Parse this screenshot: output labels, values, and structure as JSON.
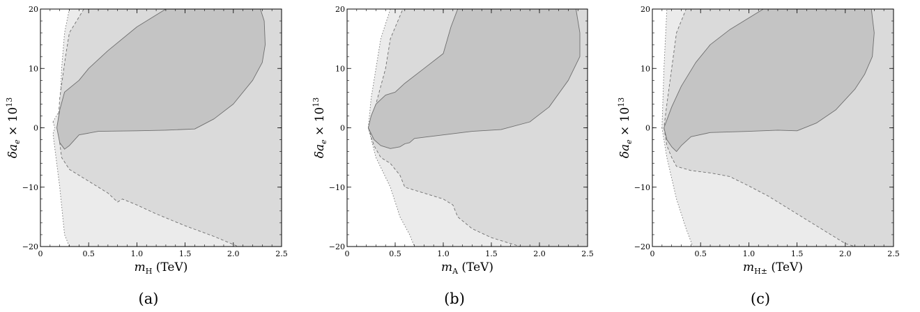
{
  "chart_data": [
    {
      "type": "area",
      "caption": "(a)",
      "xlabel": {
        "var": "m",
        "sub": "H",
        "unit": " (TeV)"
      },
      "ylabel": {
        "var": "δa",
        "sub": "e",
        "factor": " × 10",
        "exp": "13"
      },
      "xlim": [
        0,
        2.5
      ],
      "ylim": [
        -20,
        20
      ],
      "xticks": [
        0,
        0.5,
        1.0,
        1.5,
        2.0,
        2.5
      ],
      "xtick_labels": [
        "0",
        "0.5",
        "1.0",
        "1.5",
        "2.0",
        "2.5"
      ],
      "yticks": [
        -20,
        -10,
        0,
        10,
        20
      ],
      "ytick_labels": [
        "−20",
        "−10",
        "0",
        "10",
        "20"
      ],
      "grid": false,
      "colors": {
        "light": "#ebebeb",
        "medium": "#dadada",
        "dark": "#c4c4c4"
      },
      "regions": [
        {
          "name": "light",
          "style": "dotted",
          "points": [
            [
              0.13,
              1
            ],
            [
              0.15,
              0
            ],
            [
              0.13,
              -1
            ],
            [
              0.2,
              -10
            ],
            [
              0.25,
              -18
            ],
            [
              0.3,
              -20
            ],
            [
              2.5,
              -20
            ],
            [
              2.5,
              20
            ],
            [
              0.3,
              20
            ],
            [
              0.25,
              16
            ],
            [
              0.22,
              10
            ],
            [
              0.2,
              3
            ]
          ]
        },
        {
          "name": "medium",
          "style": "dashed",
          "points": [
            [
              0.18,
              0
            ],
            [
              0.22,
              -5
            ],
            [
              0.3,
              -7
            ],
            [
              0.5,
              -9
            ],
            [
              0.7,
              -11
            ],
            [
              0.8,
              -12.5
            ],
            [
              0.85,
              -12
            ],
            [
              1.0,
              -13
            ],
            [
              1.2,
              -14.5
            ],
            [
              1.5,
              -16.5
            ],
            [
              1.8,
              -18.3
            ],
            [
              2.05,
              -20
            ],
            [
              2.5,
              -20
            ],
            [
              2.5,
              20
            ],
            [
              2.22,
              20
            ],
            [
              0.45,
              20
            ],
            [
              0.3,
              16
            ],
            [
              0.26,
              12
            ],
            [
              0.2,
              5
            ]
          ]
        },
        {
          "name": "dark",
          "style": "solid",
          "points": [
            [
              0.17,
              0
            ],
            [
              0.2,
              -2.5
            ],
            [
              0.25,
              -3.6
            ],
            [
              0.3,
              -3
            ],
            [
              0.4,
              -1.2
            ],
            [
              0.6,
              -0.6
            ],
            [
              1.0,
              -0.5
            ],
            [
              1.3,
              -0.4
            ],
            [
              1.6,
              -0.2
            ],
            [
              1.8,
              1.5
            ],
            [
              2.0,
              4
            ],
            [
              2.2,
              8
            ],
            [
              2.3,
              11
            ],
            [
              2.33,
              14
            ],
            [
              2.32,
              18
            ],
            [
              2.28,
              20
            ],
            [
              1.3,
              20
            ],
            [
              1.0,
              17
            ],
            [
              0.7,
              13
            ],
            [
              0.5,
              10
            ],
            [
              0.4,
              8
            ],
            [
              0.25,
              6
            ],
            [
              0.2,
              3
            ]
          ]
        }
      ]
    },
    {
      "type": "area",
      "caption": "(b)",
      "xlabel": {
        "var": "m",
        "sub": "A",
        "unit": " (TeV)"
      },
      "ylabel": {
        "var": "δa",
        "sub": "e",
        "factor": " × 10",
        "exp": "13"
      },
      "xlim": [
        0,
        2.5
      ],
      "ylim": [
        -20,
        20
      ],
      "xticks": [
        0,
        0.5,
        1.0,
        1.5,
        2.0,
        2.5
      ],
      "xtick_labels": [
        "0",
        "0.5",
        "1.0",
        "1.5",
        "2.0",
        "2.5"
      ],
      "yticks": [
        -20,
        -10,
        0,
        10,
        20
      ],
      "ytick_labels": [
        "−20",
        "−10",
        "0",
        "10",
        "20"
      ],
      "grid": false,
      "colors": {
        "light": "#ebebeb",
        "medium": "#dadada",
        "dark": "#c4c4c4"
      },
      "regions": [
        {
          "name": "light",
          "style": "dotted",
          "points": [
            [
              0.22,
              0
            ],
            [
              0.3,
              -5
            ],
            [
              0.45,
              -10
            ],
            [
              0.55,
              -15
            ],
            [
              0.65,
              -18
            ],
            [
              0.7,
              -20
            ],
            [
              2.5,
              -20
            ],
            [
              2.5,
              20
            ],
            [
              0.45,
              20
            ],
            [
              0.35,
              15
            ],
            [
              0.3,
              10
            ],
            [
              0.25,
              5
            ]
          ]
        },
        {
          "name": "medium",
          "style": "dashed",
          "points": [
            [
              0.22,
              0
            ],
            [
              0.28,
              -3
            ],
            [
              0.35,
              -5
            ],
            [
              0.45,
              -6
            ],
            [
              0.55,
              -8
            ],
            [
              0.6,
              -10
            ],
            [
              0.8,
              -11
            ],
            [
              1.0,
              -12
            ],
            [
              1.1,
              -13
            ],
            [
              1.15,
              -15
            ],
            [
              1.3,
              -17
            ],
            [
              1.5,
              -18.5
            ],
            [
              1.8,
              -20
            ],
            [
              2.5,
              -20
            ],
            [
              2.5,
              20
            ],
            [
              2.3,
              20
            ],
            [
              0.58,
              20
            ],
            [
              0.45,
              15
            ],
            [
              0.4,
              10
            ],
            [
              0.3,
              4
            ]
          ]
        },
        {
          "name": "dark",
          "style": "solid",
          "points": [
            [
              0.22,
              0
            ],
            [
              0.28,
              -2
            ],
            [
              0.35,
              -3
            ],
            [
              0.45,
              -3.5
            ],
            [
              0.55,
              -3.2
            ],
            [
              0.6,
              -2.7
            ],
            [
              0.65,
              -2.5
            ],
            [
              0.7,
              -1.8
            ],
            [
              0.8,
              -1.6
            ],
            [
              1.0,
              -1.2
            ],
            [
              1.3,
              -0.6
            ],
            [
              1.6,
              -0.3
            ],
            [
              1.9,
              1
            ],
            [
              2.1,
              3.5
            ],
            [
              2.3,
              8
            ],
            [
              2.42,
              12
            ],
            [
              2.42,
              16
            ],
            [
              2.38,
              20
            ],
            [
              1.15,
              20
            ],
            [
              1.08,
              17
            ],
            [
              1.0,
              12.5
            ],
            [
              0.8,
              10
            ],
            [
              0.6,
              7.5
            ],
            [
              0.5,
              6
            ],
            [
              0.4,
              5.5
            ],
            [
              0.3,
              4
            ],
            [
              0.25,
              2
            ]
          ]
        }
      ]
    },
    {
      "type": "area",
      "caption": "(c)",
      "xlabel": {
        "var": "m",
        "sub": "H±",
        "unit": " (TeV)"
      },
      "ylabel": {
        "var": "δa",
        "sub": "e",
        "factor": " × 10",
        "exp": "13"
      },
      "xlim": [
        0,
        2.5
      ],
      "ylim": [
        -20,
        20
      ],
      "xticks": [
        0,
        0.5,
        1.0,
        1.5,
        2.0,
        2.5
      ],
      "xtick_labels": [
        "0",
        "0.5",
        "1.0",
        "1.5",
        "2.0",
        "2.5"
      ],
      "yticks": [
        -20,
        -10,
        0,
        10,
        20
      ],
      "ytick_labels": [
        "−20",
        "−10",
        "0",
        "10",
        "20"
      ],
      "grid": false,
      "colors": {
        "light": "#ebebeb",
        "medium": "#dadada",
        "dark": "#c4c4c4"
      },
      "regions": [
        {
          "name": "light",
          "style": "dotted",
          "points": [
            [
              0.1,
              0
            ],
            [
              0.15,
              -5
            ],
            [
              0.25,
              -12
            ],
            [
              0.35,
              -17
            ],
            [
              0.42,
              -20
            ],
            [
              2.5,
              -20
            ],
            [
              2.5,
              20
            ],
            [
              0.15,
              20
            ],
            [
              0.12,
              10
            ]
          ]
        },
        {
          "name": "medium",
          "style": "dashed",
          "points": [
            [
              0.12,
              0
            ],
            [
              0.15,
              -3
            ],
            [
              0.2,
              -5
            ],
            [
              0.25,
              -6.5
            ],
            [
              0.4,
              -7.2
            ],
            [
              0.6,
              -7.6
            ],
            [
              0.8,
              -8.2
            ],
            [
              1.0,
              -9.8
            ],
            [
              1.2,
              -11.5
            ],
            [
              1.5,
              -14.5
            ],
            [
              1.8,
              -17.5
            ],
            [
              2.0,
              -19.5
            ],
            [
              2.1,
              -20
            ],
            [
              2.5,
              -20
            ],
            [
              2.5,
              20
            ],
            [
              2.2,
              20
            ],
            [
              0.35,
              20
            ],
            [
              0.25,
              16
            ],
            [
              0.2,
              10
            ],
            [
              0.15,
              4
            ]
          ]
        },
        {
          "name": "dark",
          "style": "solid",
          "points": [
            [
              0.12,
              0
            ],
            [
              0.15,
              -2
            ],
            [
              0.2,
              -3.2
            ],
            [
              0.25,
              -4
            ],
            [
              0.3,
              -3
            ],
            [
              0.4,
              -1.5
            ],
            [
              0.6,
              -0.8
            ],
            [
              1.0,
              -0.6
            ],
            [
              1.3,
              -0.4
            ],
            [
              1.5,
              -0.5
            ],
            [
              1.7,
              0.8
            ],
            [
              1.9,
              3
            ],
            [
              2.1,
              6.5
            ],
            [
              2.2,
              9
            ],
            [
              2.28,
              12
            ],
            [
              2.3,
              16
            ],
            [
              2.27,
              20
            ],
            [
              1.15,
              20
            ],
            [
              0.8,
              16.5
            ],
            [
              0.6,
              14
            ],
            [
              0.45,
              11
            ],
            [
              0.3,
              7
            ],
            [
              0.2,
              3.5
            ]
          ]
        }
      ]
    }
  ]
}
